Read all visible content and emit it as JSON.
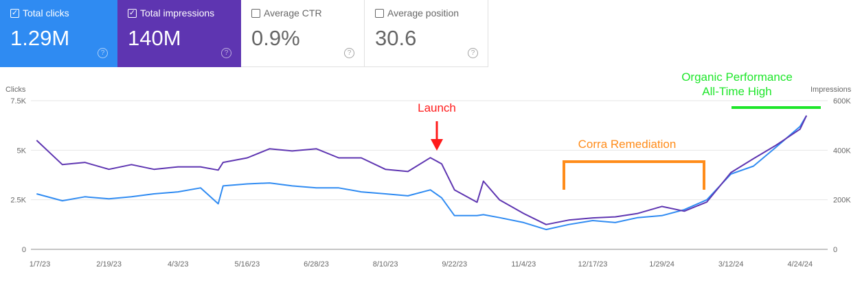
{
  "metrics": [
    {
      "label": "Total clicks",
      "value": "1.29M",
      "checked": true,
      "color": "#2f8bf2"
    },
    {
      "label": "Total impressions",
      "value": "140M",
      "checked": true,
      "color": "#5e35b1"
    },
    {
      "label": "Average CTR",
      "value": "0.9%",
      "checked": false
    },
    {
      "label": "Average position",
      "value": "30.6",
      "checked": false
    }
  ],
  "icons": {
    "checkbox_checked": "☑",
    "help": "?",
    "check": "✓"
  },
  "chart_data": {
    "type": "line",
    "left_axis": {
      "label": "Clicks",
      "ticks": [
        "0",
        "2.5K",
        "5K",
        "7.5K"
      ],
      "ylim": [
        0,
        7500
      ]
    },
    "right_axis": {
      "label": "Impressions",
      "ticks": [
        "0",
        "200K",
        "400K",
        "600K"
      ],
      "ylim": [
        0,
        600000
      ]
    },
    "x_ticks": [
      "1/7/23",
      "2/19/23",
      "4/3/23",
      "5/16/23",
      "6/28/23",
      "8/10/23",
      "9/22/23",
      "11/4/23",
      "12/17/23",
      "1/29/24",
      "3/12/24",
      "4/24/24"
    ],
    "grid": true,
    "series": [
      {
        "name": "Clicks",
        "axis": "left",
        "color": "#2f8bf2"
      },
      {
        "name": "Impressions",
        "axis": "right",
        "color": "#5e35b1"
      }
    ],
    "points": [
      [
        "2023-01-05",
        2800,
        440000
      ],
      [
        "2023-01-21",
        2450,
        342000
      ],
      [
        "2023-02-04",
        2650,
        351000
      ],
      [
        "2023-02-19",
        2550,
        323000
      ],
      [
        "2023-03-05",
        2650,
        342000
      ],
      [
        "2023-03-19",
        2800,
        323000
      ],
      [
        "2023-04-03",
        2900,
        333000
      ],
      [
        "2023-04-17",
        3100,
        333000
      ],
      [
        "2023-04-28",
        2300,
        320000
      ],
      [
        "2023-05-01",
        3200,
        351000
      ],
      [
        "2023-05-16",
        3300,
        369000
      ],
      [
        "2023-05-30",
        3350,
        406000
      ],
      [
        "2023-06-13",
        3200,
        397000
      ],
      [
        "2023-06-28",
        3100,
        406000
      ],
      [
        "2023-07-12",
        3100,
        369000
      ],
      [
        "2023-07-26",
        2900,
        369000
      ],
      [
        "2023-08-10",
        2800,
        323000
      ],
      [
        "2023-08-24",
        2700,
        314000
      ],
      [
        "2023-09-07",
        3000,
        370000
      ],
      [
        "2023-09-14",
        2600,
        345000
      ],
      [
        "2023-09-22",
        1700,
        240000
      ],
      [
        "2023-10-06",
        1700,
        190000
      ],
      [
        "2023-10-10",
        1750,
        275000
      ],
      [
        "2023-10-20",
        1600,
        200000
      ],
      [
        "2023-11-04",
        1350,
        145000
      ],
      [
        "2023-11-18",
        1000,
        100000
      ],
      [
        "2023-12-02",
        1250,
        118000
      ],
      [
        "2023-12-17",
        1450,
        127000
      ],
      [
        "2023-12-31",
        1350,
        131000
      ],
      [
        "2024-01-14",
        1600,
        145000
      ],
      [
        "2024-01-29",
        1700,
        173000
      ],
      [
        "2024-02-12",
        2000,
        154000
      ],
      [
        "2024-02-26",
        2500,
        191000
      ],
      [
        "2024-03-12",
        3800,
        310000
      ],
      [
        "2024-03-26",
        4200,
        366000
      ],
      [
        "2024-04-09",
        5150,
        420000
      ],
      [
        "2024-04-24",
        6200,
        485000
      ],
      [
        "2024-04-28",
        6750,
        540000
      ]
    ],
    "annotations": [
      {
        "text": "Launch",
        "color": "#ff1a1a"
      },
      {
        "text": "Corra Remediation",
        "color": "#ff8c1a"
      },
      {
        "lines": [
          "Organic Performance",
          "All-Time High"
        ],
        "color": "#1ee62a"
      }
    ]
  }
}
